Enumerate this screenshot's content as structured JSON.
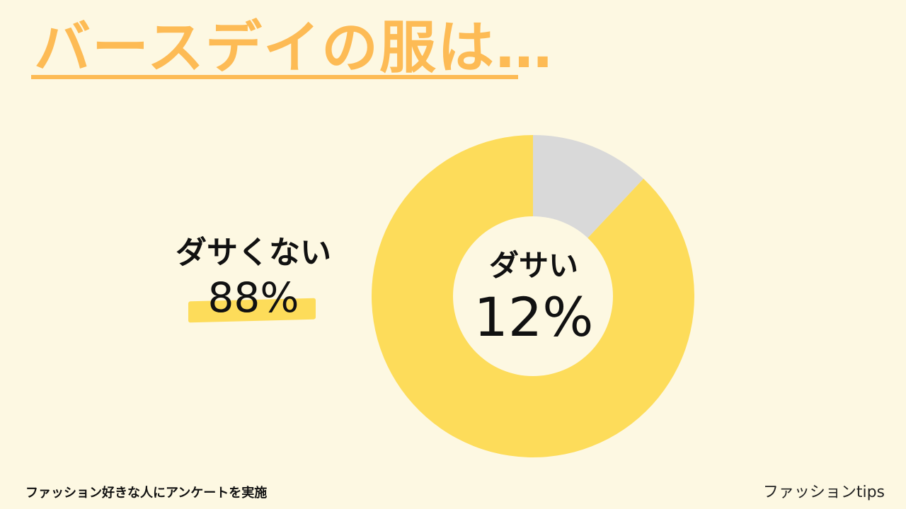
{
  "title": "バースデイの服は…",
  "chart_data": {
    "type": "pie",
    "categories": [
      "ダサい",
      "ダサくない"
    ],
    "values": [
      12,
      88
    ],
    "colors": [
      "#d9d9d9",
      "#fddc5a"
    ],
    "labels": [
      {
        "name": "ダサい",
        "value_text": "12%"
      },
      {
        "name": "ダサくない",
        "value_text": "88%"
      }
    ],
    "center_color": "#fdf8e2"
  },
  "footer_note": "ファッション好きな人にアンケートを実施",
  "brand": "ファッションtips",
  "colors": {
    "background": "#fdf8e2",
    "title": "#fdbb55",
    "highlight": "#fddc5a",
    "text": "#111111"
  }
}
